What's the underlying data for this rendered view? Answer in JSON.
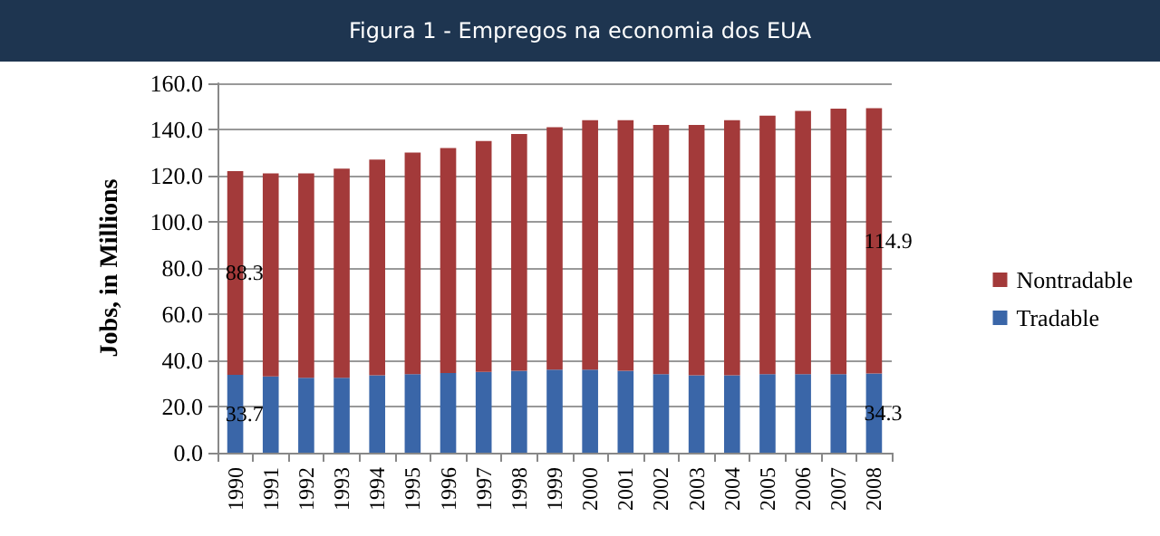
{
  "chart_data": {
    "type": "bar",
    "title": "Figura 1 - Empregos na economia dos EUA",
    "ylabel": "Jobs, in Millions",
    "categories": [
      "1990",
      "1991",
      "1992",
      "1993",
      "1994",
      "1995",
      "1996",
      "1997",
      "1998",
      "1999",
      "2000",
      "2001",
      "2002",
      "2003",
      "2004",
      "2005",
      "2006",
      "2007",
      "2008"
    ],
    "stacked": true,
    "series": [
      {
        "name": "Tradable",
        "color": "#3a66a8",
        "values": [
          33.7,
          33,
          32.5,
          32.5,
          33.5,
          34,
          34.5,
          35,
          35.5,
          36,
          36,
          35.5,
          34,
          33.5,
          33.5,
          34,
          34,
          34,
          34.3
        ],
        "value_labels": [
          "33.7",
          null,
          null,
          null,
          null,
          null,
          null,
          null,
          null,
          null,
          null,
          null,
          null,
          null,
          null,
          null,
          null,
          null,
          "34.3"
        ]
      },
      {
        "name": "Nontradable",
        "color": "#a33a3a",
        "values": [
          88.3,
          88,
          88.5,
          90.5,
          93.5,
          96,
          97.5,
          100,
          102.5,
          105,
          108,
          108.5,
          108,
          108.5,
          110.5,
          112,
          114,
          115,
          114.9
        ],
        "value_labels": [
          "88.3",
          null,
          null,
          null,
          null,
          null,
          null,
          null,
          null,
          null,
          null,
          null,
          null,
          null,
          null,
          null,
          null,
          null,
          "114.9"
        ]
      }
    ],
    "ylim": [
      0,
      160
    ],
    "yticks": [
      {
        "value": 0,
        "label": "0.0"
      },
      {
        "value": 20,
        "label": "20.0"
      },
      {
        "value": 40,
        "label": "40.0"
      },
      {
        "value": 60,
        "label": "60.0"
      },
      {
        "value": 80,
        "label": "80.0"
      },
      {
        "value": 100,
        "label": "100.0"
      },
      {
        "value": 120,
        "label": "120.0"
      },
      {
        "value": 140,
        "label": "140.0"
      },
      {
        "value": 160,
        "label": "160.0"
      }
    ],
    "grid": "y",
    "legend": "right"
  }
}
